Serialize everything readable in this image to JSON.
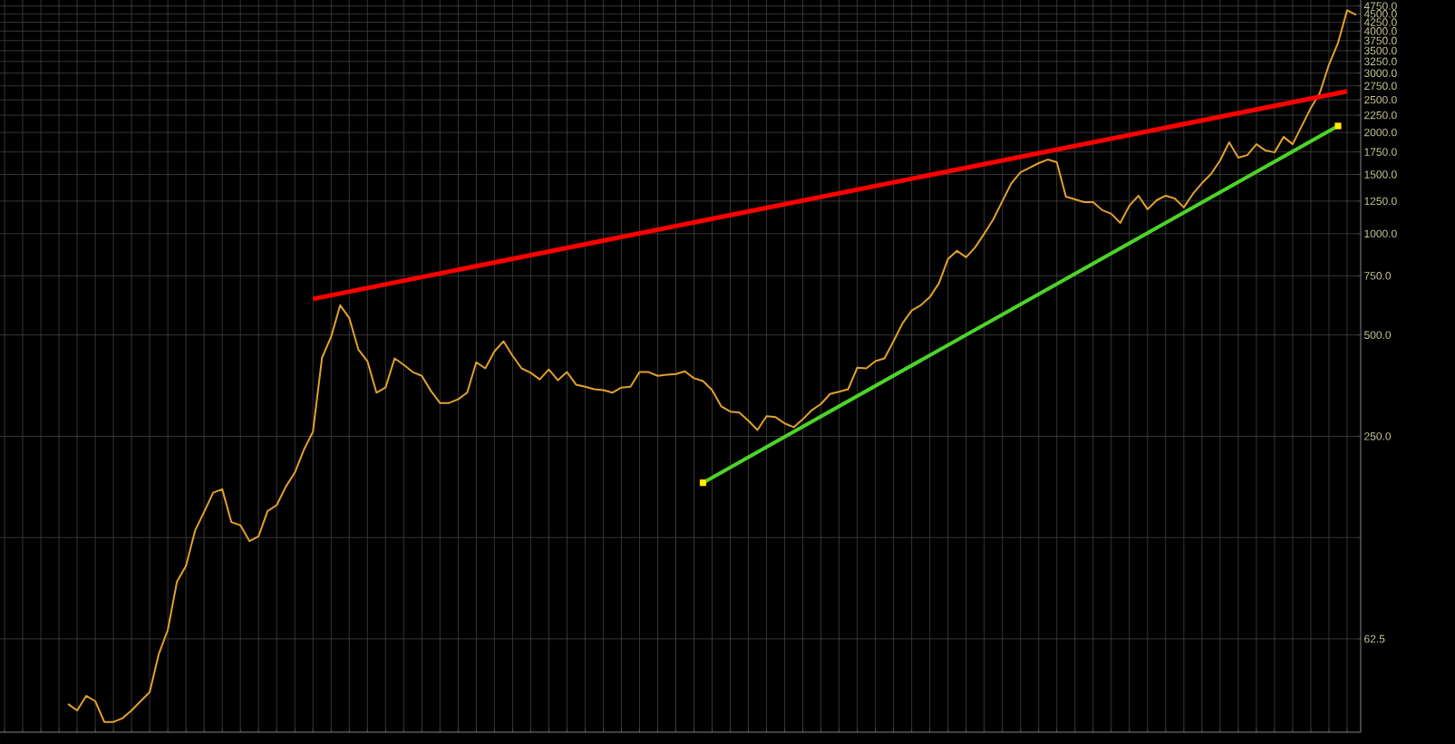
{
  "chart_data": {
    "type": "line",
    "log": "y",
    "grid": true,
    "tick_labels": "y",
    "categories": [
      null,
      null,
      null,
      null,
      null,
      null,
      null,
      null,
      null,
      null,
      null,
      null,
      null,
      null,
      null,
      null,
      null,
      null,
      null,
      null,
      null,
      null,
      null,
      null,
      null,
      null,
      null,
      null,
      null,
      null,
      null,
      null,
      null,
      null,
      null,
      null,
      null,
      null,
      null,
      null,
      null,
      null,
      null,
      null,
      null,
      null,
      null,
      null,
      null,
      null,
      null,
      null,
      null,
      null,
      null,
      null,
      null,
      null,
      null,
      null,
      null,
      null,
      null,
      null,
      null,
      null,
      null,
      null,
      null,
      null,
      null,
      null,
      null,
      null,
      null,
      null,
      null,
      null,
      null,
      null,
      null,
      null,
      null,
      null,
      null,
      null,
      null,
      null,
      null,
      null,
      null,
      null,
      null,
      null,
      null,
      null,
      null,
      null,
      null,
      null,
      null,
      null,
      null,
      null,
      null,
      null,
      null,
      null,
      null,
      null,
      null,
      null,
      null,
      null,
      null,
      null,
      null,
      null,
      null,
      null,
      null,
      null,
      null,
      null,
      null,
      null,
      null,
      null,
      null,
      null,
      null,
      null,
      null,
      null,
      null,
      null,
      null,
      null,
      null,
      null,
      null,
      null,
      null,
      null,
      null,
      null,
      null,
      null,
      null,
      null
    ],
    "ylim": [
      33,
      4950
    ],
    "yticks": [
      {
        "value": 62.5,
        "label": "62.5"
      },
      {
        "value": 125,
        "label": null
      },
      {
        "value": 250,
        "label": "250.0"
      },
      {
        "value": 500,
        "label": "500.0"
      },
      {
        "value": 750,
        "label": "750.0"
      },
      {
        "value": 1000,
        "label": "1000.0"
      },
      {
        "value": 1250,
        "label": "1250.0"
      },
      {
        "value": 1500,
        "label": "1500.0"
      },
      {
        "value": 1750,
        "label": "1750.0"
      },
      {
        "value": 2000,
        "label": "2000.0"
      },
      {
        "value": 2250,
        "label": "2250.0"
      },
      {
        "value": 2500,
        "label": "2500.0"
      },
      {
        "value": 2750,
        "label": "2750.0"
      },
      {
        "value": 3000,
        "label": "3000.0"
      },
      {
        "value": 3250,
        "label": "3250.0"
      },
      {
        "value": 3500,
        "label": "3500.0"
      },
      {
        "value": 3750,
        "label": "3750.0"
      },
      {
        "value": 4000,
        "label": "4000.0"
      },
      {
        "value": 4250,
        "label": "4250.0"
      },
      {
        "value": 4500,
        "label": "4500.0"
      },
      {
        "value": 4750,
        "label": "4750.0"
      }
    ],
    "series": [
      {
        "color": "#e0a030",
        "values": [
          null,
          null,
          null,
          null,
          null,
          null,
          null,
          40.0,
          38.3,
          42.3,
          40.8,
          35.4,
          35.4,
          36.3,
          38.3,
          40.8,
          43.4,
          56.3,
          66.5,
          92.3,
          103,
          131,
          149,
          170,
          174,
          139,
          136,
          122,
          126,
          150,
          156,
          177,
          195,
          228,
          258,
          428,
          494,
          613,
          562,
          453,
          418,
          337,
          349,
          426,
          408,
          388,
          378,
          341,
          314,
          314,
          322,
          337,
          415,
          398,
          447,
          479,
          434,
          398,
          386,
          369,
          395,
          367,
          388,
          356,
          351,
          345,
          343,
          337,
          349,
          351,
          388,
          388,
          378,
          381,
          383,
          390,
          372,
          365,
          343,
          307,
          296,
          294,
          278,
          261,
          287,
          285,
          273,
          266,
          281,
          299,
          312,
          334,
          339,
          345,
          400,
          398,
          418,
          426,
          479,
          542,
          591,
          613,
          648,
          712,
          841,
          889,
          851,
          911,
          1000,
          1104,
          1250,
          1414,
          1523,
          1571,
          1621,
          1661,
          1631,
          1289,
          1265,
          1242,
          1242,
          1175,
          1146,
          1077,
          1212,
          1297,
          1182,
          1257,
          1297,
          1273,
          1197,
          1313,
          1414,
          1505,
          1651,
          1869,
          1682,
          1713,
          1845,
          1767,
          1745,
          1939,
          1845,
          2089,
          2364,
          2626,
          3181,
          3691,
          4612,
          4471
        ],
        "line_style": "solid"
      },
      {
        "type": "line",
        "values": [
          null,
          null,
          null,
          null,
          null,
          null,
          null,
          null,
          null,
          null,
          null,
          null,
          null,
          null,
          null,
          null,
          null,
          null,
          null,
          null,
          null,
          null,
          null,
          null,
          null,
          null,
          null,
          null,
          null,
          null,
          null,
          null,
          null,
          null,
          640,
          null,
          null,
          null,
          null,
          null,
          null,
          null,
          null,
          null,
          null,
          null,
          null,
          null,
          null,
          null,
          null,
          null,
          null,
          null,
          null,
          null,
          null,
          null,
          null,
          null,
          null,
          null,
          null,
          null,
          null,
          null,
          null,
          null,
          null,
          null,
          null,
          null,
          null,
          null,
          null,
          null,
          null,
          null,
          null,
          null,
          null,
          null,
          null,
          null,
          null,
          null,
          null,
          null,
          null,
          null,
          null,
          null,
          null,
          null,
          null,
          null,
          null,
          null,
          null,
          null,
          null,
          null,
          null,
          null,
          null,
          null,
          null,
          null,
          null,
          null,
          null,
          null,
          null,
          null,
          null,
          null,
          null,
          null,
          null,
          null,
          null,
          null,
          null,
          null,
          null,
          null,
          null,
          null,
          null,
          null,
          null,
          null,
          null,
          null,
          null,
          null,
          null,
          null,
          null,
          null,
          null,
          null,
          null,
          null,
          null,
          null,
          null,
          null,
          2650,
          null
        ],
        "color": "#ff0000"
      },
      {
        "type": "line",
        "values": [
          null,
          null,
          null,
          null,
          null,
          null,
          null,
          null,
          null,
          null,
          null,
          null,
          null,
          null,
          null,
          null,
          null,
          null,
          null,
          null,
          null,
          null,
          null,
          null,
          null,
          null,
          null,
          null,
          null,
          null,
          null,
          null,
          null,
          null,
          null,
          null,
          null,
          null,
          null,
          null,
          null,
          null,
          null,
          null,
          null,
          null,
          null,
          null,
          null,
          null,
          null,
          null,
          null,
          null,
          null,
          null,
          null,
          null,
          null,
          null,
          null,
          null,
          null,
          null,
          null,
          null,
          null,
          null,
          null,
          null,
          null,
          null,
          null,
          null,
          null,
          null,
          null,
          182,
          null,
          null,
          null,
          null,
          null,
          null,
          null,
          null,
          null,
          null,
          null,
          null,
          null,
          null,
          null,
          null,
          null,
          null,
          null,
          null,
          null,
          null,
          null,
          null,
          null,
          null,
          null,
          null,
          null,
          null,
          null,
          null,
          null,
          null,
          null,
          null,
          null,
          null,
          null,
          null,
          null,
          null,
          null,
          null,
          null,
          null,
          null,
          null,
          null,
          null,
          null,
          null,
          null,
          null,
          null,
          null,
          null,
          null,
          null,
          null,
          null,
          null,
          null,
          null,
          null,
          null,
          null,
          null,
          null,
          2090,
          null,
          null
        ],
        "color": "#4cd42a",
        "marker": "square"
      }
    ]
  }
}
